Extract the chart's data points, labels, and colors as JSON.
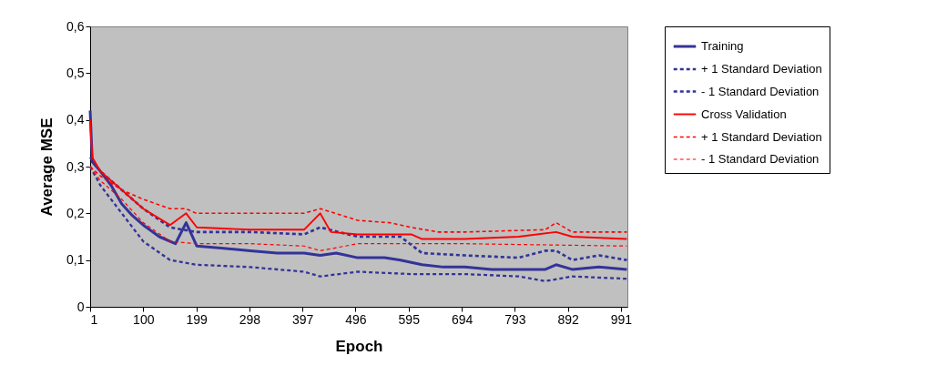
{
  "chart_data": {
    "type": "line",
    "xlabel": "Epoch",
    "ylabel": "Average MSE",
    "xlim": [
      1,
      1003
    ],
    "xticks": [
      1,
      100,
      199,
      298,
      397,
      496,
      595,
      694,
      793,
      892,
      991
    ],
    "ylim": [
      0,
      0.6
    ],
    "yticks": [
      0,
      {
        "value": 0.1,
        "label": "0,1"
      },
      {
        "value": 0.2,
        "label": "0,2"
      },
      {
        "value": 0.3,
        "label": "0,3"
      },
      {
        "value": 0.4,
        "label": "0,4"
      },
      {
        "value": 0.5,
        "label": "0,5"
      },
      {
        "value": 0.6,
        "label": "0,6"
      }
    ],
    "grid": false,
    "legend": "right",
    "marker": "none",
    "series": [
      {
        "name": "Training",
        "color": "#333399",
        "line_style": "solid",
        "x": [
          1,
          5,
          20,
          40,
          60,
          80,
          100,
          130,
          160,
          180,
          200,
          250,
          300,
          350,
          400,
          430,
          460,
          500,
          550,
          580,
          620,
          660,
          700,
          750,
          800,
          850,
          870,
          900,
          950,
          1002
        ],
        "values": [
          0.42,
          0.31,
          0.29,
          0.26,
          0.22,
          0.195,
          0.175,
          0.15,
          0.135,
          0.18,
          0.13,
          0.125,
          0.12,
          0.115,
          0.115,
          0.11,
          0.115,
          0.105,
          0.105,
          0.1,
          0.09,
          0.085,
          0.085,
          0.08,
          0.08,
          0.08,
          0.09,
          0.08,
          0.085,
          0.08
        ]
      },
      {
        "name": "+ 1 Standard Deviation",
        "color": "#333399",
        "line_style": "dashed",
        "x": [
          1,
          20,
          60,
          100,
          150,
          199,
          300,
          400,
          430,
          500,
          580,
          620,
          700,
          800,
          850,
          870,
          900,
          950,
          1002
        ],
        "values": [
          0.32,
          0.29,
          0.25,
          0.21,
          0.17,
          0.16,
          0.16,
          0.155,
          0.17,
          0.15,
          0.15,
          0.115,
          0.11,
          0.105,
          0.12,
          0.12,
          0.1,
          0.11,
          0.1
        ]
      },
      {
        "name": "- 1 Standard Deviation",
        "color": "#333399",
        "line_style": "dashed",
        "x": [
          1,
          20,
          60,
          100,
          150,
          199,
          300,
          400,
          430,
          500,
          600,
          700,
          800,
          850,
          900,
          1002
        ],
        "values": [
          0.3,
          0.26,
          0.2,
          0.14,
          0.1,
          0.09,
          0.085,
          0.075,
          0.065,
          0.075,
          0.07,
          0.07,
          0.065,
          0.055,
          0.065,
          0.06
        ]
      },
      {
        "name": "Cross Validation",
        "color": "#ff0000",
        "line_style": "solid",
        "x": [
          1,
          5,
          20,
          50,
          100,
          150,
          180,
          200,
          300,
          400,
          430,
          450,
          500,
          600,
          620,
          700,
          800,
          870,
          900,
          1002
        ],
        "values": [
          0.4,
          0.32,
          0.29,
          0.26,
          0.21,
          0.175,
          0.2,
          0.17,
          0.165,
          0.165,
          0.2,
          0.16,
          0.155,
          0.155,
          0.145,
          0.145,
          0.15,
          0.16,
          0.15,
          0.145
        ]
      },
      {
        "name": "+ 1 Standard Deviation",
        "color": "#ff0000",
        "line_style": "dashed",
        "x": [
          1,
          20,
          60,
          100,
          150,
          180,
          199,
          300,
          400,
          430,
          500,
          560,
          600,
          650,
          700,
          850,
          870,
          900,
          1002
        ],
        "values": [
          0.3,
          0.28,
          0.25,
          0.23,
          0.21,
          0.21,
          0.2,
          0.2,
          0.2,
          0.21,
          0.185,
          0.18,
          0.17,
          0.16,
          0.16,
          0.165,
          0.18,
          0.16,
          0.16
        ]
      },
      {
        "name": "- 1 Standard Deviation",
        "color": "#ff0000",
        "line_style": "dashed",
        "x": [
          1,
          20,
          60,
          100,
          150,
          200,
          300,
          400,
          430,
          500,
          600,
          700,
          1002
        ],
        "values": [
          0.3,
          0.27,
          0.23,
          0.18,
          0.14,
          0.135,
          0.135,
          0.13,
          0.12,
          0.135,
          0.135,
          0.135,
          0.13
        ]
      }
    ]
  }
}
